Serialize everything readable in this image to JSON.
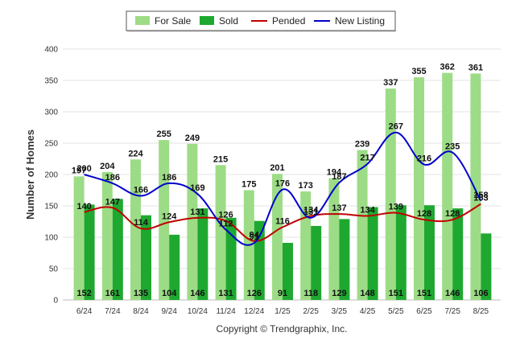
{
  "chart_data": {
    "type": "bar",
    "ylabel": "Number of Homes",
    "ylim": [
      0,
      400
    ],
    "yticks": [
      0,
      50,
      100,
      150,
      200,
      250,
      300,
      350,
      400
    ],
    "categories": [
      "6/24",
      "7/24",
      "8/24",
      "9/24",
      "10/24",
      "11/24",
      "12/24",
      "1/25",
      "2/25",
      "3/25",
      "4/25",
      "5/25",
      "6/25",
      "7/25",
      "8/25"
    ],
    "series": [
      {
        "name": "For Sale",
        "kind": "bar",
        "color": "#9ddc86",
        "values": [
          197,
          204,
          224,
          255,
          249,
          215,
          175,
          201,
          173,
          194,
          239,
          337,
          355,
          362,
          361
        ]
      },
      {
        "name": "Sold",
        "kind": "bar",
        "color": "#1ea830",
        "values": [
          152,
          161,
          135,
          104,
          146,
          131,
          126,
          91,
          118,
          129,
          148,
          151,
          151,
          146,
          106
        ]
      },
      {
        "name": "Pended",
        "kind": "line",
        "color": "#c00000",
        "values": [
          140,
          147,
          114,
          124,
          131,
          126,
          94,
          116,
          134,
          137,
          134,
          139,
          128,
          128,
          153
        ]
      },
      {
        "name": "New Listing",
        "kind": "line",
        "color": "#0000cc",
        "values": [
          200,
          186,
          166,
          186,
          169,
          112,
          91,
          176,
          131,
          187,
          217,
          267,
          216,
          235,
          158
        ]
      }
    ],
    "legend_position": "top-center",
    "grid": true,
    "credit": "Copyright © Trendgraphix, Inc."
  }
}
